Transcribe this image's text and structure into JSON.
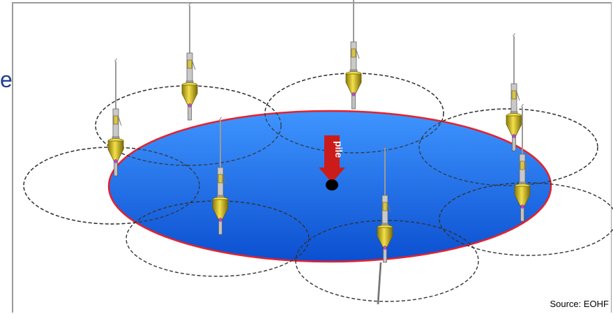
{
  "diagram": {
    "pile_label": "pile",
    "source_label": "Source: EOHF",
    "edge_glyph": "e",
    "colors": {
      "area_fill_light": "#3f95ff",
      "area_fill_dark": "#0b4fd0",
      "area_outline": "#e8202a",
      "circle_stroke": "#333333",
      "arrow": "#cc1b1b",
      "buoy_body": "#d9c222",
      "buoy_shade": "#8a7a0c",
      "pile_marker": "#000000"
    },
    "buoy_count": 8,
    "ring_count": 8
  }
}
